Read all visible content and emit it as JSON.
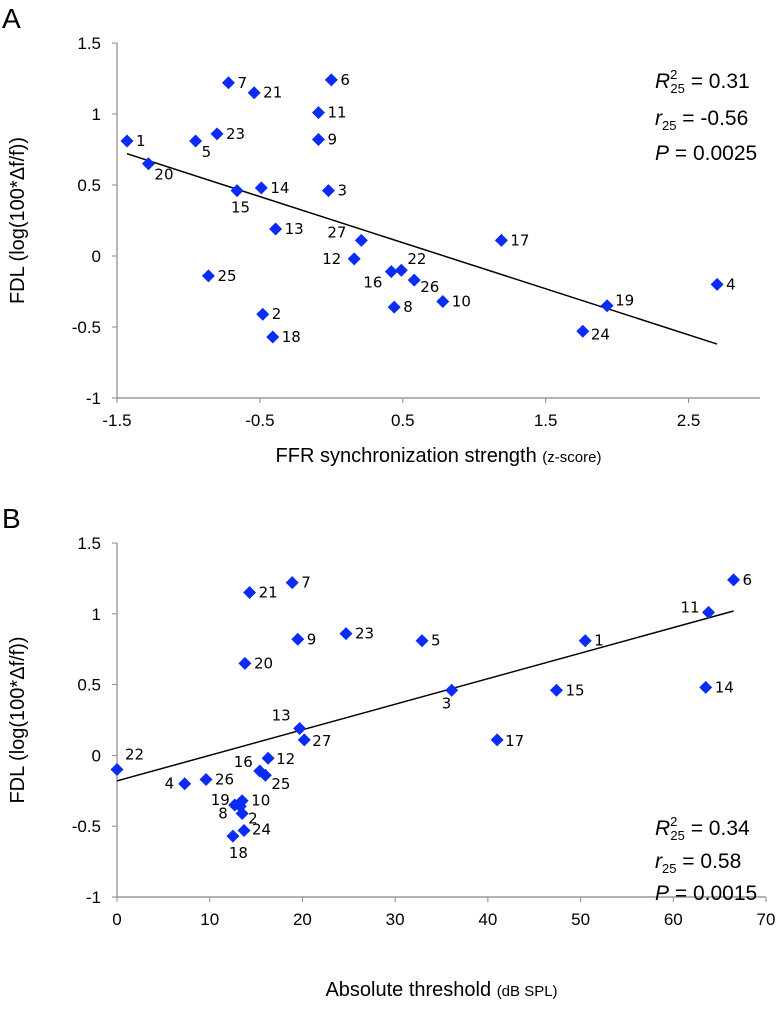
{
  "chart_data": [
    {
      "type": "scatter",
      "panel_label": "A",
      "xlabel": "FFR synchronization strength",
      "xlabel_unit": "(z-score)",
      "ylabel": "FDL (log(100*Δf/f))",
      "xlim": [
        -1.5,
        3.0
      ],
      "ylim": [
        -1,
        1.5
      ],
      "xticks": [
        "-1.5",
        "-0.5",
        "0.5",
        "1.5",
        "2.5"
      ],
      "xtick_values": [
        -1.5,
        -0.5,
        0.5,
        1.5,
        2.5
      ],
      "yticks": [
        "1.5",
        "1",
        "0.5",
        "0",
        "-0.5",
        "-1"
      ],
      "ytick_values": [
        1.5,
        1,
        0.5,
        0,
        -0.5,
        -1
      ],
      "marker_color": "#0a2cf5",
      "points": [
        {
          "id": "1",
          "x": -1.43,
          "y": 0.81
        },
        {
          "id": "20",
          "x": -1.28,
          "y": 0.65
        },
        {
          "id": "5",
          "x": -0.95,
          "y": 0.81
        },
        {
          "id": "23",
          "x": -0.8,
          "y": 0.86
        },
        {
          "id": "7",
          "x": -0.72,
          "y": 1.22
        },
        {
          "id": "21",
          "x": -0.54,
          "y": 1.15
        },
        {
          "id": "6",
          "x": 0.0,
          "y": 1.24
        },
        {
          "id": "11",
          "x": -0.09,
          "y": 1.01
        },
        {
          "id": "9",
          "x": -0.09,
          "y": 0.82
        },
        {
          "id": "3",
          "x": -0.02,
          "y": 0.46
        },
        {
          "id": "15",
          "x": -0.66,
          "y": 0.46
        },
        {
          "id": "14",
          "x": -0.49,
          "y": 0.48
        },
        {
          "id": "13",
          "x": -0.39,
          "y": 0.19
        },
        {
          "id": "27",
          "x": 0.21,
          "y": 0.11
        },
        {
          "id": "12",
          "x": 0.16,
          "y": -0.02
        },
        {
          "id": "16",
          "x": 0.42,
          "y": -0.11
        },
        {
          "id": "22",
          "x": 0.49,
          "y": -0.1
        },
        {
          "id": "26",
          "x": 0.58,
          "y": -0.17
        },
        {
          "id": "8",
          "x": 0.44,
          "y": -0.36
        },
        {
          "id": "10",
          "x": 0.78,
          "y": -0.32
        },
        {
          "id": "25",
          "x": -0.86,
          "y": -0.14
        },
        {
          "id": "2",
          "x": -0.48,
          "y": -0.41
        },
        {
          "id": "18",
          "x": -0.41,
          "y": -0.57
        },
        {
          "id": "17",
          "x": 1.19,
          "y": 0.11
        },
        {
          "id": "19",
          "x": 1.93,
          "y": -0.35
        },
        {
          "id": "24",
          "x": 1.76,
          "y": -0.53
        },
        {
          "id": "4",
          "x": 2.7,
          "y": -0.2
        }
      ],
      "fit_line": {
        "x": [
          -1.43,
          2.7
        ],
        "y": [
          0.72,
          -0.62
        ]
      },
      "stats": {
        "r2_label": "R",
        "r2_sup": "2",
        "r2_sub": "25",
        "r2_value": "= 0.31",
        "r_label": "r",
        "r_sub": "25",
        "r_value": "= -0.56",
        "p_label": "P",
        "p_value": "= 0.0025"
      }
    },
    {
      "type": "scatter",
      "panel_label": "B",
      "xlabel": "Absolute threshold",
      "xlabel_unit": "(dB SPL)",
      "ylabel": "FDL (log(100*Δf/f))",
      "xlim": [
        0,
        70
      ],
      "ylim": [
        -1,
        1.5
      ],
      "xticks": [
        "0",
        "10",
        "20",
        "30",
        "40",
        "50",
        "60",
        "70"
      ],
      "xtick_values": [
        0,
        10,
        20,
        30,
        40,
        50,
        60,
        70
      ],
      "yticks": [
        "1.5",
        "1",
        "0.5",
        "0",
        "-0.5",
        "-1"
      ],
      "ytick_values": [
        1.5,
        1,
        0.5,
        0,
        -0.5,
        -1
      ],
      "marker_color": "#0a2cf5",
      "points": [
        {
          "id": "22",
          "x": 0.0,
          "y": -0.1
        },
        {
          "id": "4",
          "x": 7.3,
          "y": -0.2
        },
        {
          "id": "26",
          "x": 9.6,
          "y": -0.17
        },
        {
          "id": "19",
          "x": 12.7,
          "y": -0.35
        },
        {
          "id": "8",
          "x": 13.3,
          "y": -0.36
        },
        {
          "id": "10",
          "x": 13.5,
          "y": -0.32
        },
        {
          "id": "2",
          "x": 13.5,
          "y": -0.41
        },
        {
          "id": "24",
          "x": 13.7,
          "y": -0.53
        },
        {
          "id": "18",
          "x": 12.5,
          "y": -0.57
        },
        {
          "id": "16",
          "x": 15.4,
          "y": -0.11
        },
        {
          "id": "25",
          "x": 16.0,
          "y": -0.14
        },
        {
          "id": "12",
          "x": 16.3,
          "y": -0.02
        },
        {
          "id": "13",
          "x": 19.7,
          "y": 0.19
        },
        {
          "id": "27",
          "x": 20.2,
          "y": 0.11
        },
        {
          "id": "20",
          "x": 13.8,
          "y": 0.65
        },
        {
          "id": "21",
          "x": 14.3,
          "y": 1.15
        },
        {
          "id": "7",
          "x": 18.9,
          "y": 1.22
        },
        {
          "id": "9",
          "x": 19.5,
          "y": 0.82
        },
        {
          "id": "23",
          "x": 24.7,
          "y": 0.86
        },
        {
          "id": "5",
          "x": 32.9,
          "y": 0.81
        },
        {
          "id": "3",
          "x": 36.1,
          "y": 0.46
        },
        {
          "id": "17",
          "x": 41.0,
          "y": 0.11
        },
        {
          "id": "15",
          "x": 47.4,
          "y": 0.46
        },
        {
          "id": "1",
          "x": 50.5,
          "y": 0.81
        },
        {
          "id": "14",
          "x": 63.5,
          "y": 0.48
        },
        {
          "id": "11",
          "x": 63.8,
          "y": 1.01
        },
        {
          "id": "6",
          "x": 66.5,
          "y": 1.24
        }
      ],
      "fit_line": {
        "x": [
          0,
          66.5
        ],
        "y": [
          -0.18,
          1.02
        ]
      },
      "stats": {
        "r2_label": "R",
        "r2_sup": "2",
        "r2_sub": "25",
        "r2_value": "= 0.34",
        "r_label": "r",
        "r_sub": "25",
        "r_value": "= 0.58",
        "p_label": "P",
        "p_value": "= 0.0015"
      }
    }
  ]
}
